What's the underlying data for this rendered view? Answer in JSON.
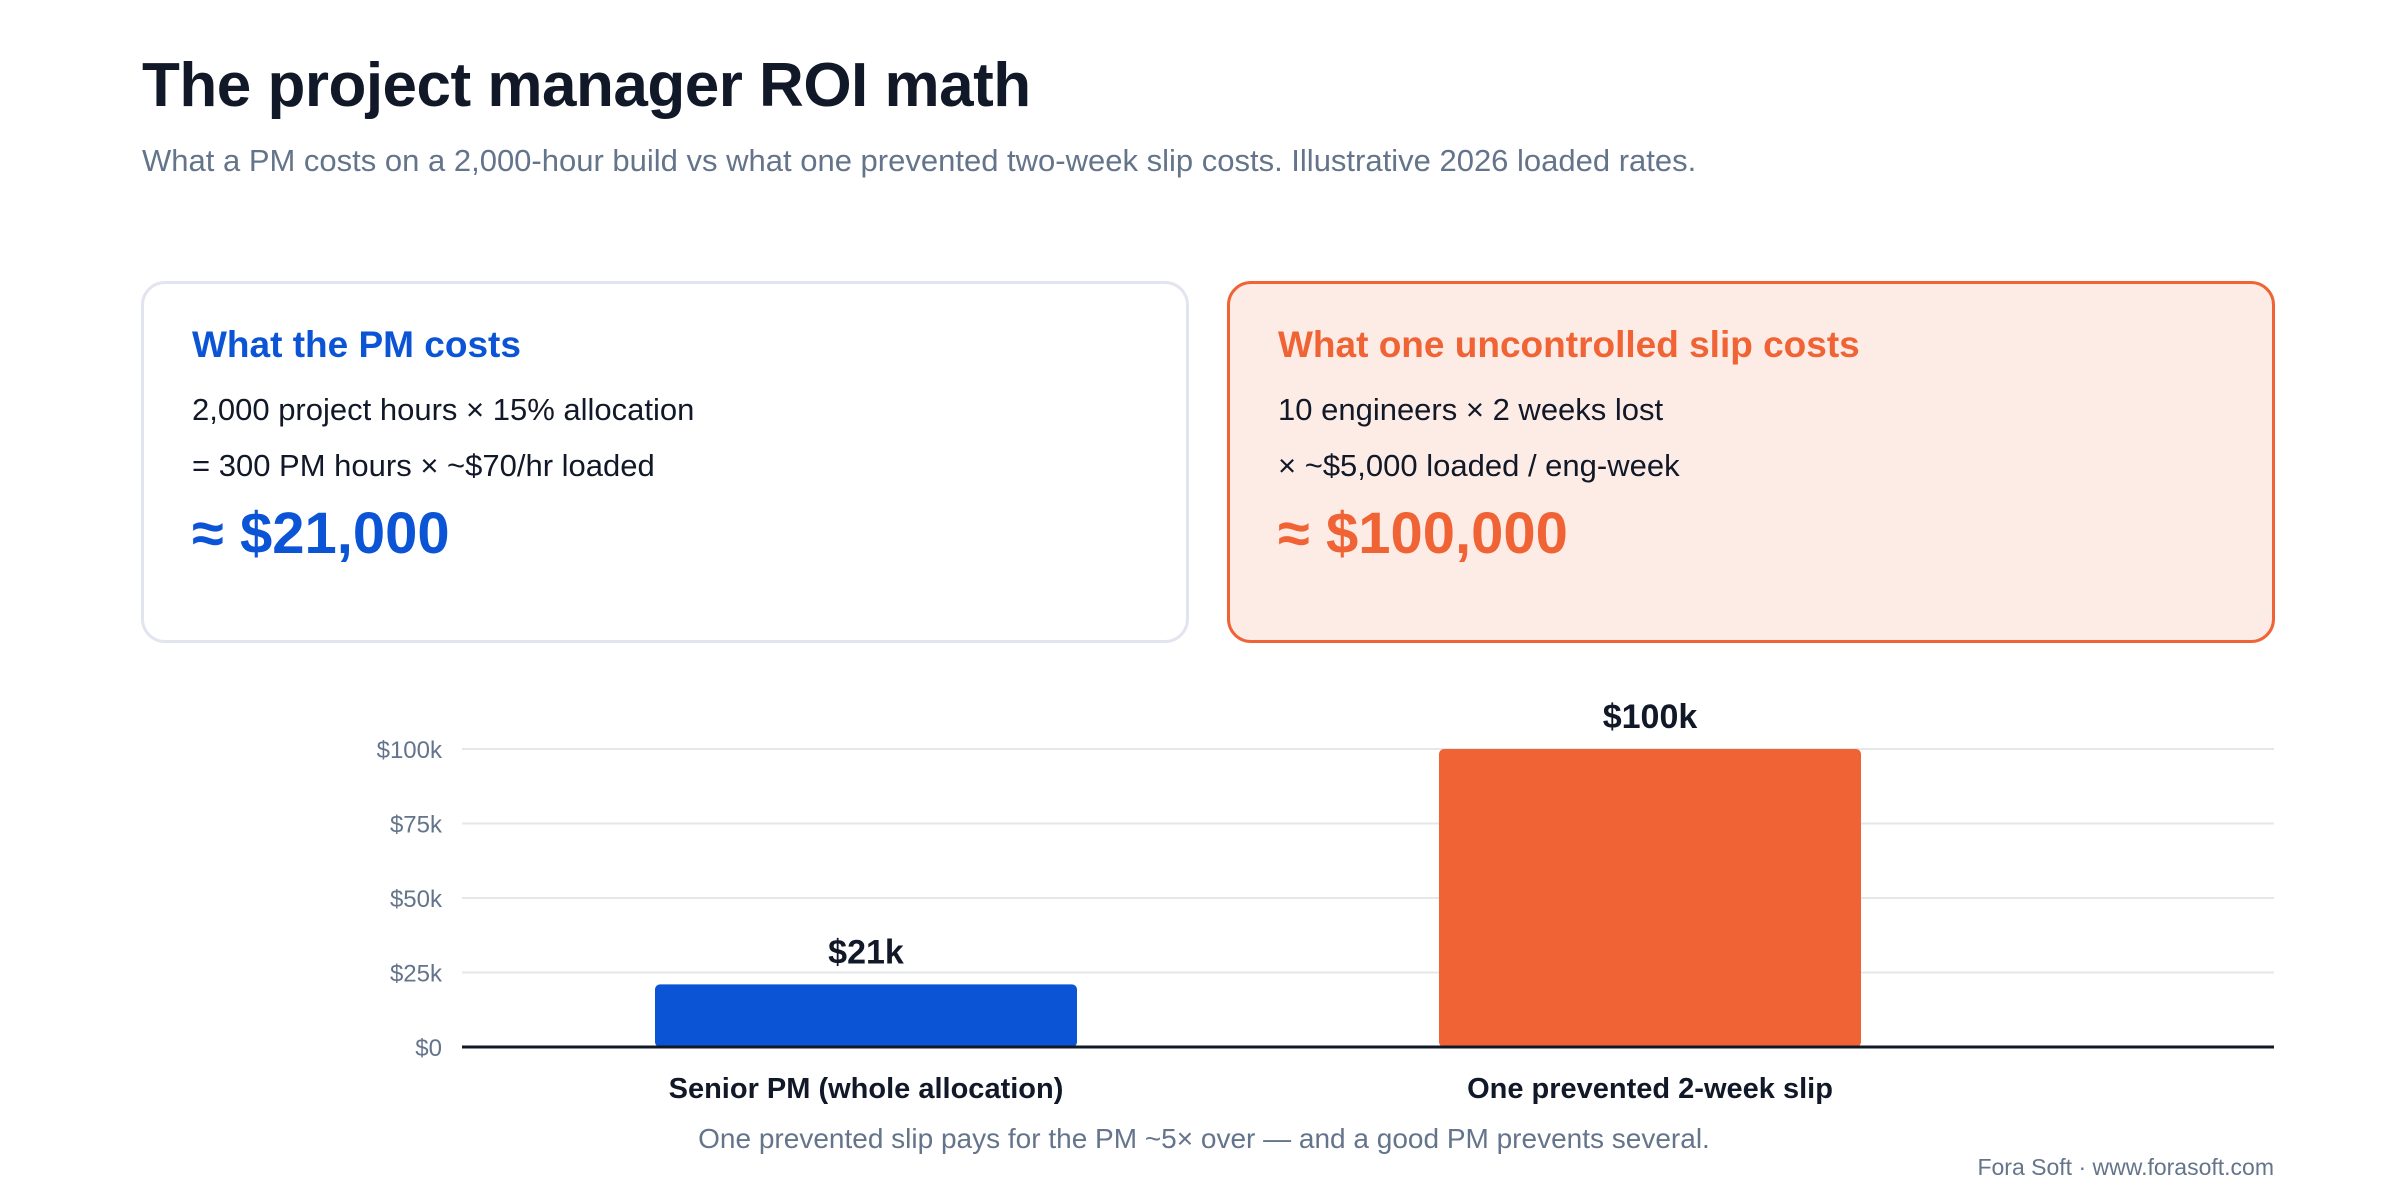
{
  "header": {
    "title": "The project manager ROI math",
    "subtitle": "What a PM costs on a 2,000-hour build vs what one prevented two-week slip costs. Illustrative 2026 loaded rates."
  },
  "cards": {
    "pm": {
      "heading": "What the PM costs",
      "line1": "2,000 project hours × 15% allocation",
      "line2": "= 300 PM hours × ~$70/hr loaded",
      "total": "≈ $21,000"
    },
    "slip": {
      "heading": "What one uncontrolled slip costs",
      "line1": "10 engineers × 2 weeks lost",
      "line2": "× ~$5,000 loaded / eng-week",
      "total": "≈ $100,000"
    }
  },
  "chart_data": {
    "type": "bar",
    "categories": [
      "Senior PM (whole allocation)",
      "One prevented 2-week slip"
    ],
    "values": [
      21000,
      100000
    ],
    "value_labels": [
      "$21k",
      "$100k"
    ],
    "bar_colors": [
      "#0b54d6",
      "#ef6334"
    ],
    "ylim": [
      0,
      100000
    ],
    "yticks": [
      0,
      25000,
      50000,
      75000,
      100000
    ],
    "ytick_labels": [
      "$0",
      "$25k",
      "$50k",
      "$75k",
      "$100k"
    ],
    "grid": true,
    "legend": "none"
  },
  "caption": "One prevented slip pays for the PM ~5× over — and a good PM prevents several.",
  "footer": "Fora Soft · www.forasoft.com",
  "colors": {
    "blue": "#0b54d6",
    "orange": "#ef6334",
    "ink": "#111827",
    "muted": "#64748b",
    "grid": "#e5e7eb"
  }
}
